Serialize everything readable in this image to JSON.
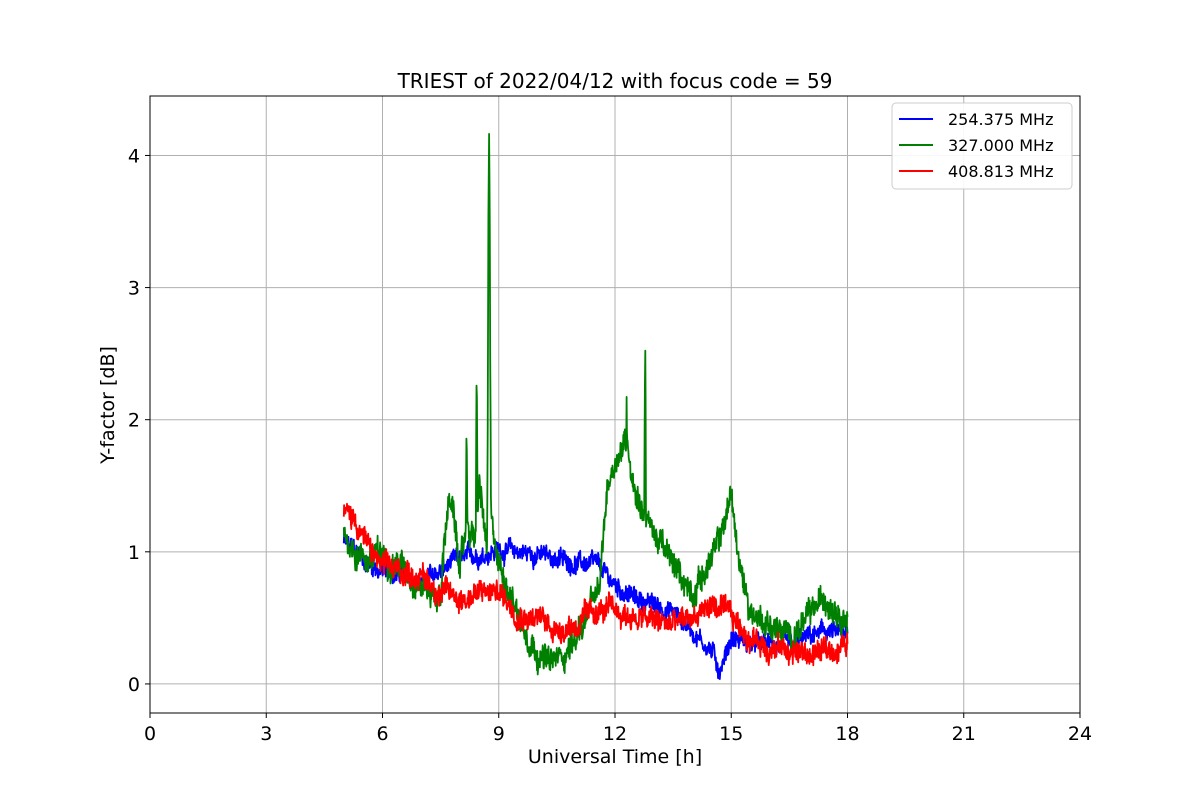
{
  "chart_data": {
    "type": "line",
    "title": "TRIEST of 2022/04/12 with focus code = 59",
    "xlabel": "Universal Time [h]",
    "ylabel": "Y-factor [dB]",
    "xlim": [
      0,
      24
    ],
    "ylim": [
      -0.22,
      4.45
    ],
    "xticks": [
      0,
      3,
      6,
      9,
      12,
      15,
      18,
      21,
      24
    ],
    "yticks": [
      0,
      1,
      2,
      3,
      4
    ],
    "xtick_labels": [
      "0",
      "3",
      "6",
      "9",
      "12",
      "15",
      "18",
      "21",
      "24"
    ],
    "ytick_labels": [
      "0",
      "1",
      "2",
      "3",
      "4"
    ],
    "grid": true,
    "legend_position": "top-right",
    "series": [
      {
        "name": "254.375 MHz",
        "color": "#0000ff",
        "x": [
          5.0,
          5.3,
          5.6,
          6.0,
          6.5,
          7.0,
          7.5,
          8.0,
          8.5,
          9.0,
          9.5,
          10.0,
          10.5,
          11.0,
          11.5,
          12.0,
          12.5,
          13.0,
          13.5,
          14.0,
          14.5,
          14.7,
          15.0,
          15.5,
          16.0,
          16.5,
          17.0,
          17.5,
          18.0
        ],
        "y": [
          1.08,
          1.0,
          0.92,
          0.85,
          0.82,
          0.78,
          0.85,
          0.95,
          0.98,
          1.02,
          1.0,
          0.98,
          0.95,
          0.92,
          0.9,
          0.75,
          0.65,
          0.6,
          0.55,
          0.4,
          0.25,
          0.1,
          0.35,
          0.3,
          0.3,
          0.28,
          0.35,
          0.4,
          0.35
        ],
        "noise": 0.07
      },
      {
        "name": "327.000 MHz",
        "color": "#008000",
        "x": [
          5.0,
          5.3,
          5.6,
          6.0,
          6.5,
          7.0,
          7.5,
          7.6,
          7.7,
          7.8,
          8.0,
          8.2,
          8.4,
          8.5,
          8.7,
          8.75,
          8.8,
          9.0,
          9.3,
          9.6,
          10.0,
          10.3,
          10.6,
          11.0,
          11.3,
          11.6,
          11.8,
          12.0,
          12.3,
          12.5,
          12.8,
          13.0,
          13.3,
          13.6,
          14.0,
          14.3,
          14.6,
          14.8,
          15.0,
          15.2,
          15.5,
          16.0,
          16.5,
          17.0,
          17.4,
          17.7,
          18.0
        ],
        "y": [
          1.15,
          1.0,
          0.95,
          0.98,
          0.9,
          0.75,
          0.65,
          1.1,
          1.4,
          1.3,
          0.9,
          1.2,
          1.1,
          1.5,
          1.0,
          4.2,
          1.2,
          0.9,
          0.7,
          0.45,
          0.25,
          0.15,
          0.2,
          0.35,
          0.55,
          0.7,
          1.5,
          1.7,
          1.85,
          1.5,
          1.25,
          1.15,
          1.0,
          0.85,
          0.7,
          0.85,
          1.0,
          1.2,
          1.45,
          0.9,
          0.55,
          0.45,
          0.35,
          0.5,
          0.65,
          0.6,
          0.5
        ],
        "noise": 0.1
      },
      {
        "name": "408.813 MHz",
        "color": "#ff0000",
        "x": [
          5.0,
          5.3,
          5.6,
          6.0,
          6.5,
          7.0,
          7.5,
          8.0,
          8.5,
          9.0,
          9.5,
          10.0,
          10.5,
          11.0,
          11.5,
          12.0,
          12.5,
          13.0,
          13.5,
          14.0,
          14.5,
          15.0,
          15.5,
          16.0,
          16.5,
          17.0,
          17.5,
          18.0
        ],
        "y": [
          1.3,
          1.25,
          1.05,
          0.88,
          0.85,
          0.82,
          0.7,
          0.65,
          0.68,
          0.7,
          0.55,
          0.5,
          0.42,
          0.45,
          0.55,
          0.55,
          0.5,
          0.48,
          0.45,
          0.5,
          0.6,
          0.5,
          0.35,
          0.28,
          0.25,
          0.22,
          0.25,
          0.3
        ],
        "noise": 0.09
      }
    ],
    "spikes": [
      {
        "series": 1,
        "x": 8.75,
        "y": 4.22
      },
      {
        "series": 1,
        "x": 8.43,
        "y": 2.4
      },
      {
        "series": 1,
        "x": 8.17,
        "y": 2.0
      },
      {
        "series": 1,
        "x": 12.78,
        "y": 2.58
      },
      {
        "series": 1,
        "x": 12.3,
        "y": 2.23
      }
    ]
  }
}
